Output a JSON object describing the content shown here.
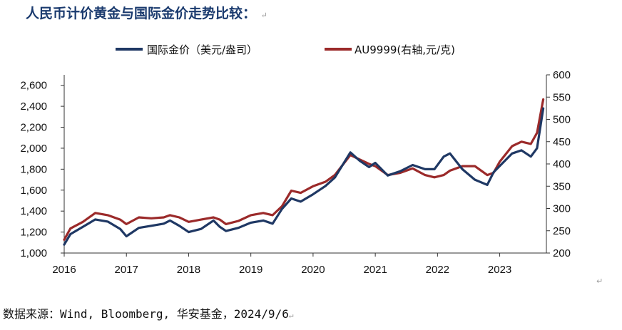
{
  "title": "人民币计价黄金与国际金价走势比较：",
  "source": "数据来源：Wind, Bloomberg, 华安基金，2024/9/6",
  "return_mark": "↵",
  "chart_data": {
    "type": "line",
    "x_ticks": [
      "2016",
      "2017",
      "2018",
      "2019",
      "2020",
      "2021",
      "2022",
      "2023"
    ],
    "x_range": [
      2016.0,
      2023.75
    ],
    "y_left": {
      "ticks": [
        "1,000",
        "1,200",
        "1,400",
        "1,600",
        "1,800",
        "2,000",
        "2,200",
        "2,400",
        "2,600"
      ],
      "ylim": [
        1000,
        2700
      ]
    },
    "y_right": {
      "ticks": [
        "200",
        "250",
        "300",
        "350",
        "400",
        "450",
        "500",
        "550",
        "600"
      ],
      "ylim": [
        200,
        600
      ]
    },
    "legend_placement": "top-center",
    "series": [
      {
        "name": "国际金价（美元/盎司）",
        "axis": "left",
        "color": "#1f3864",
        "x": [
          2016.0,
          2016.1,
          2016.3,
          2016.5,
          2016.7,
          2016.9,
          2017.0,
          2017.2,
          2017.4,
          2017.6,
          2017.7,
          2017.85,
          2018.0,
          2018.2,
          2018.4,
          2018.5,
          2018.6,
          2018.8,
          2019.0,
          2019.2,
          2019.35,
          2019.5,
          2019.65,
          2019.8,
          2020.0,
          2020.2,
          2020.35,
          2020.6,
          2020.75,
          2020.9,
          2021.0,
          2021.2,
          2021.4,
          2021.6,
          2021.8,
          2021.95,
          2022.1,
          2022.2,
          2022.4,
          2022.6,
          2022.8,
          2022.9,
          2023.0,
          2023.2,
          2023.35,
          2023.5,
          2023.6,
          2023.7
        ],
        "y": [
          1080,
          1180,
          1250,
          1320,
          1300,
          1230,
          1160,
          1240,
          1260,
          1280,
          1310,
          1260,
          1200,
          1230,
          1310,
          1250,
          1210,
          1240,
          1290,
          1310,
          1280,
          1420,
          1520,
          1490,
          1560,
          1640,
          1720,
          1960,
          1880,
          1820,
          1860,
          1740,
          1780,
          1840,
          1800,
          1800,
          1920,
          1950,
          1800,
          1700,
          1650,
          1770,
          1830,
          1950,
          1980,
          1920,
          2000,
          2380
        ]
      },
      {
        "name": "AU9999(右轴,元/克)",
        "axis": "right",
        "color": "#9b2a2a",
        "x": [
          2016.0,
          2016.1,
          2016.3,
          2016.5,
          2016.7,
          2016.9,
          2017.0,
          2017.2,
          2017.4,
          2017.6,
          2017.7,
          2017.85,
          2018.0,
          2018.2,
          2018.4,
          2018.5,
          2018.6,
          2018.8,
          2019.0,
          2019.2,
          2019.35,
          2019.5,
          2019.65,
          2019.8,
          2020.0,
          2020.2,
          2020.35,
          2020.6,
          2020.75,
          2020.9,
          2021.0,
          2021.2,
          2021.4,
          2021.6,
          2021.8,
          2021.95,
          2022.1,
          2022.2,
          2022.4,
          2022.6,
          2022.8,
          2022.9,
          2023.0,
          2023.2,
          2023.35,
          2023.5,
          2023.6,
          2023.7
        ],
        "y": [
          230,
          255,
          270,
          290,
          285,
          275,
          265,
          280,
          278,
          280,
          285,
          280,
          270,
          275,
          280,
          275,
          265,
          272,
          285,
          290,
          285,
          305,
          340,
          335,
          350,
          360,
          375,
          420,
          410,
          400,
          395,
          375,
          380,
          390,
          375,
          370,
          375,
          385,
          395,
          395,
          375,
          380,
          405,
          440,
          450,
          445,
          470,
          545
        ]
      }
    ]
  }
}
